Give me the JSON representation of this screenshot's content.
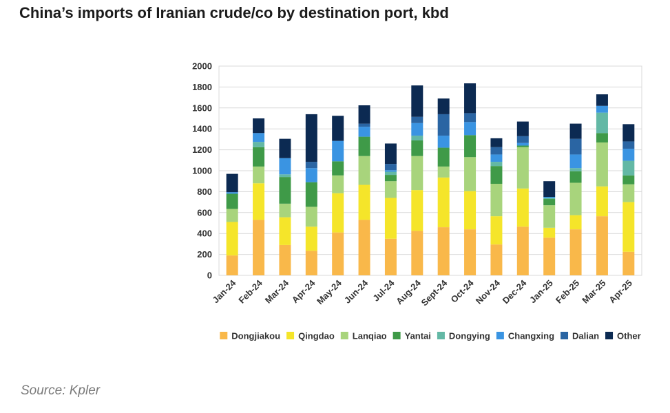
{
  "title": "China’s imports of Iranian crude/co by destination port, kbd",
  "source": "Source: Kpler",
  "chart_data": {
    "type": "bar",
    "stacked": true,
    "categories": [
      "Jan-24",
      "Feb-24",
      "Mar-24",
      "Apr-24",
      "May-24",
      "Jun-24",
      "Jul-24",
      "Aug-24",
      "Sept-24",
      "Oct-24",
      "Nov-24",
      "Dec-24",
      "Jan-25",
      "Feb-25",
      "Mar-25",
      "Apr-25"
    ],
    "ylim": [
      0,
      2000
    ],
    "yticks": [
      0,
      200,
      400,
      600,
      800,
      1000,
      1200,
      1400,
      1600,
      1800,
      2000
    ],
    "grid": true,
    "legend_position": "bottom",
    "series": [
      {
        "name": "Dongjiakou",
        "color": "#F9B84A",
        "values": [
          190,
          530,
          290,
          235,
          410,
          530,
          350,
          425,
          460,
          440,
          295,
          465,
          360,
          440,
          565,
          225
        ]
      },
      {
        "name": "Qingdao",
        "color": "#F5E52A",
        "values": [
          320,
          350,
          265,
          230,
          375,
          335,
          390,
          390,
          475,
          365,
          270,
          365,
          95,
          135,
          285,
          475
        ]
      },
      {
        "name": "Lanqiao",
        "color": "#A8D47C",
        "values": [
          125,
          160,
          130,
          190,
          170,
          275,
          160,
          325,
          105,
          325,
          310,
          395,
          215,
          310,
          420,
          170
        ]
      },
      {
        "name": "Yantai",
        "color": "#3F9A48",
        "values": [
          145,
          185,
          255,
          235,
          135,
          185,
          60,
          150,
          180,
          210,
          170,
          15,
          60,
          110,
          90,
          85
        ]
      },
      {
        "name": "Dongying",
        "color": "#63B8A5",
        "values": [
          0,
          50,
          25,
          0,
          0,
          0,
          30,
          45,
          0,
          0,
          40,
          0,
          10,
          30,
          195,
          140
        ]
      },
      {
        "name": "Changxing",
        "color": "#3A94E2",
        "values": [
          15,
          85,
          155,
          135,
          195,
          95,
          15,
          120,
          115,
          125,
          70,
          25,
          10,
          130,
          65,
          115
        ]
      },
      {
        "name": "Dalian",
        "color": "#2A65A3",
        "values": [
          0,
          0,
          0,
          60,
          0,
          30,
          60,
          60,
          205,
          85,
          70,
          65,
          0,
          150,
          0,
          70
        ]
      },
      {
        "name": "Other",
        "color": "#0C2A52",
        "values": [
          175,
          140,
          185,
          455,
          240,
          175,
          195,
          300,
          150,
          285,
          85,
          140,
          150,
          145,
          110,
          165
        ]
      }
    ]
  }
}
